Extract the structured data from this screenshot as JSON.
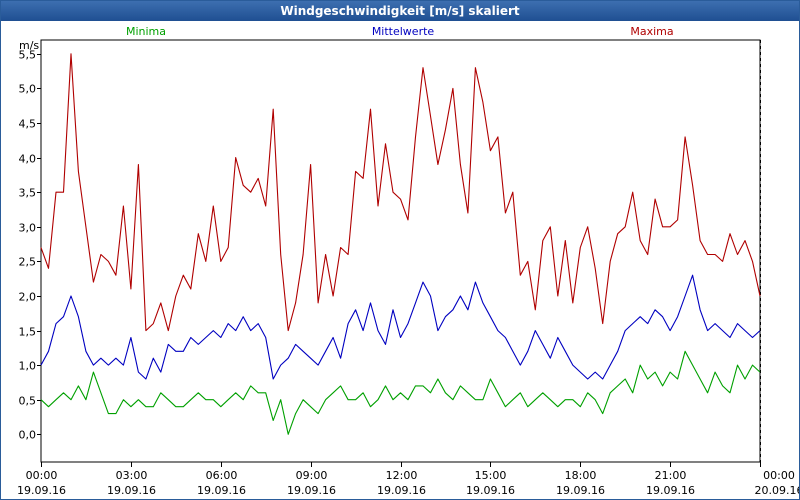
{
  "window": {
    "title": "Windgeschwindigkeit [m/s] skaliert"
  },
  "chart_data": {
    "type": "line",
    "title": "Windgeschwindigkeit [m/s] skaliert",
    "ylabel": "m/s",
    "xlabel": "",
    "ylim": [
      -0.4,
      5.7
    ],
    "xlim": [
      0,
      24
    ],
    "grid": true,
    "legend_placement": "top",
    "yticks": [
      0.0,
      0.5,
      1.0,
      1.5,
      2.0,
      2.5,
      3.0,
      3.5,
      4.0,
      4.5,
      5.0,
      5.5
    ],
    "ytick_labels": [
      "0,0",
      "0,5",
      "1,0",
      "1,5",
      "2,0",
      "2,5",
      "3,0",
      "3,5",
      "4,0",
      "4,5",
      "5,0",
      "5,5"
    ],
    "xticks": [
      0,
      3,
      6,
      9,
      12,
      15,
      18,
      21,
      24
    ],
    "xtick_labels": [
      {
        "time": "00:00",
        "date": "19.09.16"
      },
      {
        "time": "03:00",
        "date": "19.09.16"
      },
      {
        "time": "06:00",
        "date": "19.09.16"
      },
      {
        "time": "09:00",
        "date": "19.09.16"
      },
      {
        "time": "12:00",
        "date": "19.09.16"
      },
      {
        "time": "15:00",
        "date": "19.09.16"
      },
      {
        "time": "18:00",
        "date": "19.09.16"
      },
      {
        "time": "21:00",
        "date": "19.09.16"
      },
      {
        "time": "00:00",
        "date": "20.09.16"
      }
    ],
    "series": [
      {
        "name": "Minima",
        "color": "#00a000",
        "x": [
          0,
          0.25,
          0.5,
          0.75,
          1,
          1.25,
          1.5,
          1.75,
          2,
          2.25,
          2.5,
          2.75,
          3,
          3.25,
          3.5,
          3.75,
          4,
          4.25,
          4.5,
          4.75,
          5,
          5.25,
          5.5,
          5.75,
          6,
          6.25,
          6.5,
          6.75,
          7,
          7.25,
          7.5,
          7.75,
          8,
          8.25,
          8.5,
          8.75,
          9,
          9.25,
          9.5,
          9.75,
          10,
          10.25,
          10.5,
          10.75,
          11,
          11.25,
          11.5,
          11.75,
          12,
          12.25,
          12.5,
          12.75,
          13,
          13.25,
          13.5,
          13.75,
          14,
          14.25,
          14.5,
          14.75,
          15,
          15.25,
          15.5,
          15.75,
          16,
          16.25,
          16.5,
          16.75,
          17,
          17.25,
          17.5,
          17.75,
          18,
          18.25,
          18.5,
          18.75,
          19,
          19.25,
          19.5,
          19.75,
          20,
          20.25,
          20.5,
          20.75,
          21,
          21.25,
          21.5,
          21.75,
          22,
          22.25,
          22.5,
          22.75,
          23,
          23.25,
          23.5,
          23.75,
          24
        ],
        "values": [
          0.5,
          0.4,
          0.5,
          0.6,
          0.5,
          0.7,
          0.5,
          0.9,
          0.6,
          0.3,
          0.3,
          0.5,
          0.4,
          0.5,
          0.4,
          0.4,
          0.6,
          0.5,
          0.4,
          0.4,
          0.5,
          0.6,
          0.5,
          0.5,
          0.4,
          0.5,
          0.6,
          0.5,
          0.7,
          0.6,
          0.6,
          0.2,
          0.5,
          0.0,
          0.3,
          0.5,
          0.4,
          0.3,
          0.5,
          0.6,
          0.7,
          0.5,
          0.5,
          0.6,
          0.4,
          0.5,
          0.7,
          0.5,
          0.6,
          0.5,
          0.7,
          0.7,
          0.6,
          0.8,
          0.6,
          0.5,
          0.7,
          0.6,
          0.5,
          0.5,
          0.8,
          0.6,
          0.4,
          0.5,
          0.6,
          0.4,
          0.5,
          0.6,
          0.5,
          0.4,
          0.5,
          0.5,
          0.4,
          0.6,
          0.5,
          0.3,
          0.6,
          0.7,
          0.8,
          0.6,
          1.0,
          0.8,
          0.9,
          0.7,
          0.9,
          0.8,
          1.2,
          1.0,
          0.8,
          0.6,
          0.9,
          0.7,
          0.6,
          1.0,
          0.8,
          1.0,
          0.9
        ]
      },
      {
        "name": "Mittelwerte",
        "color": "#0000c0",
        "x": [
          0,
          0.25,
          0.5,
          0.75,
          1,
          1.25,
          1.5,
          1.75,
          2,
          2.25,
          2.5,
          2.75,
          3,
          3.25,
          3.5,
          3.75,
          4,
          4.25,
          4.5,
          4.75,
          5,
          5.25,
          5.5,
          5.75,
          6,
          6.25,
          6.5,
          6.75,
          7,
          7.25,
          7.5,
          7.75,
          8,
          8.25,
          8.5,
          8.75,
          9,
          9.25,
          9.5,
          9.75,
          10,
          10.25,
          10.5,
          10.75,
          11,
          11.25,
          11.5,
          11.75,
          12,
          12.25,
          12.5,
          12.75,
          13,
          13.25,
          13.5,
          13.75,
          14,
          14.25,
          14.5,
          14.75,
          15,
          15.25,
          15.5,
          15.75,
          16,
          16.25,
          16.5,
          16.75,
          17,
          17.25,
          17.5,
          17.75,
          18,
          18.25,
          18.5,
          18.75,
          19,
          19.25,
          19.5,
          19.75,
          20,
          20.25,
          20.5,
          20.75,
          21,
          21.25,
          21.5,
          21.75,
          22,
          22.25,
          22.5,
          22.75,
          23,
          23.25,
          23.5,
          23.75,
          24
        ],
        "values": [
          1.0,
          1.2,
          1.6,
          1.7,
          2.0,
          1.7,
          1.2,
          1.0,
          1.1,
          1.0,
          1.1,
          1.0,
          1.4,
          0.9,
          0.8,
          1.1,
          0.9,
          1.3,
          1.2,
          1.2,
          1.4,
          1.3,
          1.4,
          1.5,
          1.4,
          1.6,
          1.5,
          1.7,
          1.5,
          1.6,
          1.4,
          0.8,
          1.0,
          1.1,
          1.3,
          1.2,
          1.1,
          1.0,
          1.2,
          1.4,
          1.1,
          1.6,
          1.8,
          1.5,
          1.9,
          1.5,
          1.3,
          1.8,
          1.4,
          1.6,
          1.9,
          2.2,
          2.0,
          1.5,
          1.7,
          1.8,
          2.0,
          1.8,
          2.2,
          1.9,
          1.7,
          1.5,
          1.4,
          1.2,
          1.0,
          1.2,
          1.5,
          1.3,
          1.1,
          1.4,
          1.2,
          1.0,
          0.9,
          0.8,
          0.9,
          0.8,
          1.0,
          1.2,
          1.5,
          1.6,
          1.7,
          1.6,
          1.8,
          1.7,
          1.5,
          1.7,
          2.0,
          2.3,
          1.8,
          1.5,
          1.6,
          1.5,
          1.4,
          1.6,
          1.5,
          1.4,
          1.5
        ]
      },
      {
        "name": "Maxima",
        "color": "#b00000",
        "x": [
          0,
          0.25,
          0.5,
          0.75,
          1,
          1.25,
          1.5,
          1.75,
          2,
          2.25,
          2.5,
          2.75,
          3,
          3.25,
          3.5,
          3.75,
          4,
          4.25,
          4.5,
          4.75,
          5,
          5.25,
          5.5,
          5.75,
          6,
          6.25,
          6.5,
          6.75,
          7,
          7.25,
          7.5,
          7.75,
          8,
          8.25,
          8.5,
          8.75,
          9,
          9.25,
          9.5,
          9.75,
          10,
          10.25,
          10.5,
          10.75,
          11,
          11.25,
          11.5,
          11.75,
          12,
          12.25,
          12.5,
          12.75,
          13,
          13.25,
          13.5,
          13.75,
          14,
          14.25,
          14.5,
          14.75,
          15,
          15.25,
          15.5,
          15.75,
          16,
          16.25,
          16.5,
          16.75,
          17,
          17.25,
          17.5,
          17.75,
          18,
          18.25,
          18.5,
          18.75,
          19,
          19.25,
          19.5,
          19.75,
          20,
          20.25,
          20.5,
          20.75,
          21,
          21.25,
          21.5,
          21.75,
          22,
          22.25,
          22.5,
          22.75,
          23,
          23.25,
          23.5,
          23.75,
          24
        ],
        "values": [
          2.7,
          2.4,
          3.5,
          3.5,
          5.5,
          3.8,
          3.0,
          2.2,
          2.6,
          2.5,
          2.3,
          3.3,
          2.1,
          3.9,
          1.5,
          1.6,
          1.9,
          1.5,
          2.0,
          2.3,
          2.1,
          2.9,
          2.5,
          3.3,
          2.5,
          2.7,
          4.0,
          3.6,
          3.5,
          3.7,
          3.3,
          4.7,
          2.6,
          1.5,
          1.9,
          2.6,
          3.9,
          1.9,
          2.6,
          2.0,
          2.7,
          2.6,
          3.8,
          3.7,
          4.7,
          3.3,
          4.2,
          3.5,
          3.4,
          3.1,
          4.3,
          5.3,
          4.6,
          3.9,
          4.4,
          5.0,
          3.9,
          3.2,
          5.3,
          4.8,
          4.1,
          4.3,
          3.2,
          3.5,
          2.3,
          2.5,
          1.8,
          2.8,
          3.0,
          2.0,
          2.8,
          1.9,
          2.7,
          3.0,
          2.4,
          1.6,
          2.5,
          2.9,
          3.0,
          3.5,
          2.8,
          2.6,
          3.4,
          3.0,
          3.0,
          3.1,
          4.3,
          3.6,
          2.8,
          2.6,
          2.6,
          2.5,
          2.9,
          2.6,
          2.8,
          2.5,
          2.0
        ]
      }
    ]
  }
}
